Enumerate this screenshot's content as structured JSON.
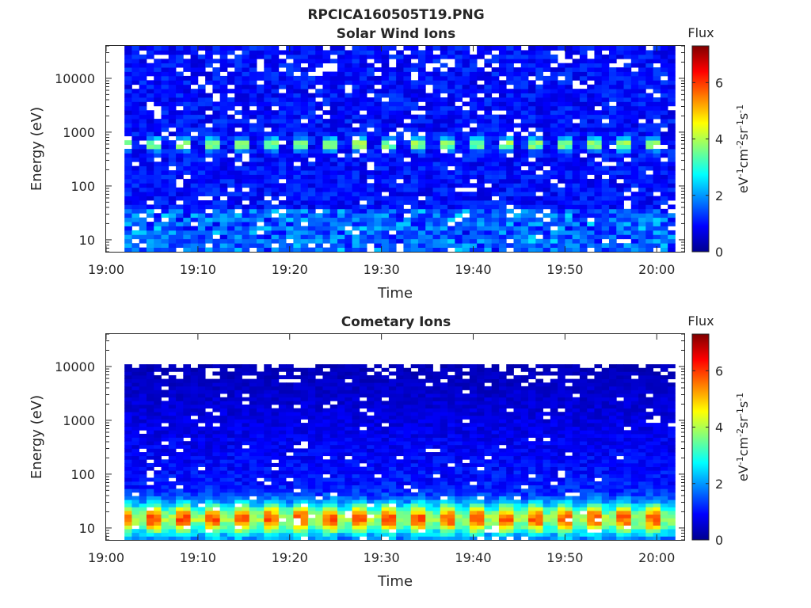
{
  "figure": {
    "title": "RPCICA160505T19.PNG"
  },
  "chart_data": [
    {
      "type": "heatmap",
      "title": "Solar Wind Ions",
      "xlabel": "Time",
      "ylabel": "Energy (eV)",
      "x_ticks": [
        "19:00",
        "19:10",
        "19:20",
        "19:30",
        "19:40",
        "19:50",
        "20:00"
      ],
      "y_ticks": [
        "10",
        "100",
        "1000",
        "10000"
      ],
      "y_scale": "log",
      "x_range": [
        "19:00",
        "20:03"
      ],
      "y_range": [
        6,
        40000
      ],
      "colorbar": {
        "title": "Flux",
        "label": "eV-1cm-2sr-1s-1",
        "range": [
          0,
          7.3
        ],
        "ticks": [
          "0",
          "2",
          "4",
          "6"
        ],
        "colormap": "jet"
      },
      "data_start": "19:02",
      "data_end": "20:02",
      "dominant_feature": {
        "energy_eV": 600,
        "flux": 4.2,
        "period_min": 3.2
      },
      "background_flux": 1.0
    },
    {
      "type": "heatmap",
      "title": "Cometary Ions",
      "xlabel": "Time",
      "ylabel": "Energy (eV)",
      "x_ticks": [
        "19:00",
        "19:10",
        "19:20",
        "19:30",
        "19:40",
        "19:50",
        "20:00"
      ],
      "y_ticks": [
        "10",
        "100",
        "1000",
        "10000"
      ],
      "y_scale": "log",
      "x_range": [
        "19:00",
        "20:03"
      ],
      "y_range": [
        6,
        40000
      ],
      "colorbar": {
        "title": "Flux",
        "label": "eV-1cm-2sr-1s-1",
        "range": [
          0,
          7.3
        ],
        "ticks": [
          "0",
          "2",
          "4",
          "6"
        ],
        "colormap": "jet"
      },
      "data_start": "19:02",
      "data_end": "20:02",
      "dominant_feature": {
        "energy_eV": 15,
        "flux": 5.3,
        "period_min": 3.2
      },
      "background_flux": 1.5,
      "max_energy_eV": 11000
    }
  ]
}
